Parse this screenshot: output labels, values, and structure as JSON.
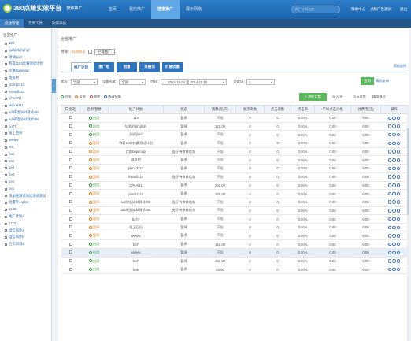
{
  "header": {
    "logo": "360点睛实效平台",
    "product": "搜索推广",
    "nav": [
      "首页",
      "我的推广",
      "搜索推广",
      "展示网络"
    ],
    "nav_active": 2,
    "search_placeholder": "推广计划名称",
    "help": "帮助中心",
    "user": "点睛广告测试",
    "logout": "退出"
  },
  "subnav": {
    "items": [
      "投放管理",
      "实用工具",
      "效果评估"
    ],
    "active": 0
  },
  "sidebar": {
    "title": "全部推广",
    "items": [
      "123",
      "fgdfghfghghgh",
      "测试jhad",
      "鸭哥1103比赛测试计划",
      "比赛bopenapi",
      "温泉村",
      "plan12313",
      "hoeadl11a",
      "CPLAN1",
      "plan11111",
      "add的配ddd测试456",
      "add的配ddd测试456",
      "bo77",
      "强上回归",
      "wwww",
      "bo7",
      "bo6",
      "bo5",
      "bo4",
      "bo3",
      "bo2",
      "bo1",
      "预加载测试测试测试测试",
      "批量导入plan",
      "1122",
      "推广计划A",
      "1122",
      "电信同步a",
      "电信同步b",
      "合作同测a"
    ]
  },
  "main": {
    "breadcrumb": "全部推广",
    "budget_label": "预算：",
    "budget_value": "¥1200/天",
    "pause_btn": "护理推广",
    "help_link": "帮助说明",
    "tabs": [
      "推广计划",
      "推广组",
      "创意",
      "关键词",
      "扩展创意"
    ],
    "active_tab": 0,
    "filter": {
      "status_label": "状态：",
      "status": "全部",
      "device_label": "设备形式：",
      "device": "全部",
      "time_label": "时间：",
      "date_range": "2014-11-04 至 2014-11-10",
      "keyword_label": "关键词：",
      "query_btn": "查询",
      "clear_btn": "清除查询"
    },
    "toolbar": {
      "enable": "启用",
      "pause": "暂停",
      "delete": "删除",
      "edit_budget": "修改预算",
      "add_btn": "+ 添加计划",
      "import": "导入/出",
      "options": "显示设置",
      "mode": "精简模式"
    },
    "columns": [
      "全选",
      "启用/暂停",
      "推广计划",
      "状态",
      "预算(元/天)",
      "展示次数",
      "点击次数",
      "点击率",
      "平均点击价格",
      "总费用(元)",
      "操作"
    ],
    "rows": [
      {
        "on": "启用",
        "name": "123",
        "status": "暂停",
        "budget": "不限"
      },
      {
        "on": "启用",
        "name": "fgdfghfghghgh",
        "status": "暂停",
        "budget": "220.00"
      },
      {
        "on": "启用",
        "name": "测试jhad",
        "status": "暂停",
        "budget": "不限"
      },
      {
        "on": "暂停",
        "name": "鸭哥1103比赛测试计划",
        "status": "暂停",
        "budget": "不限"
      },
      {
        "on": "暂停",
        "name": "比赛bopenapi",
        "status": "处于待审核状态",
        "budget": "不限"
      },
      {
        "on": "暂停",
        "name": "温泉村",
        "status": "暂停",
        "budget": "不限"
      },
      {
        "on": "暂停",
        "name": "plan12313",
        "status": "暂停",
        "budget": "不限"
      },
      {
        "on": "暂停",
        "name": "hoeadl11a",
        "status": "处于待审核状态",
        "budget": "不限"
      },
      {
        "on": "启用",
        "name": "CPLAN1",
        "status": "暂停",
        "budget": "200.00"
      },
      {
        "on": "暂停",
        "name": "plan11111",
        "status": "暂停",
        "budget": "100.00"
      },
      {
        "on": "暂停",
        "name": "add的配ddd测试456",
        "status": "处于待审核状态",
        "budget": "不限"
      },
      {
        "on": "暂停",
        "name": "add的配ddd测试456",
        "status": "处于待审核状态",
        "budget": "不限"
      },
      {
        "on": "暂停",
        "name": "bo77",
        "status": "暂停",
        "budget": "不限"
      },
      {
        "on": "暂停",
        "name": "强上回归",
        "status": "暂停",
        "budget": "不限"
      },
      {
        "on": "暂停",
        "name": "wwww",
        "status": "暂停",
        "budget": "不限"
      },
      {
        "on": "启用",
        "name": "bo7",
        "status": "暂停",
        "budget": "152.00"
      },
      {
        "on": "启用",
        "name": "wwww",
        "status": "暂停",
        "budget": "不限"
      },
      {
        "on": "启用",
        "name": "bo7",
        "status": "暂停",
        "budget": "152.00"
      },
      {
        "on": "启用",
        "name": "bo6",
        "status": "暂停",
        "budget": "50.00"
      }
    ],
    "stat_values": {
      "impressions": "0",
      "clicks": "0",
      "ctr": "0.00%",
      "avg_cpc": "0.00",
      "cost": "0.00"
    },
    "highlight_row": 16
  }
}
